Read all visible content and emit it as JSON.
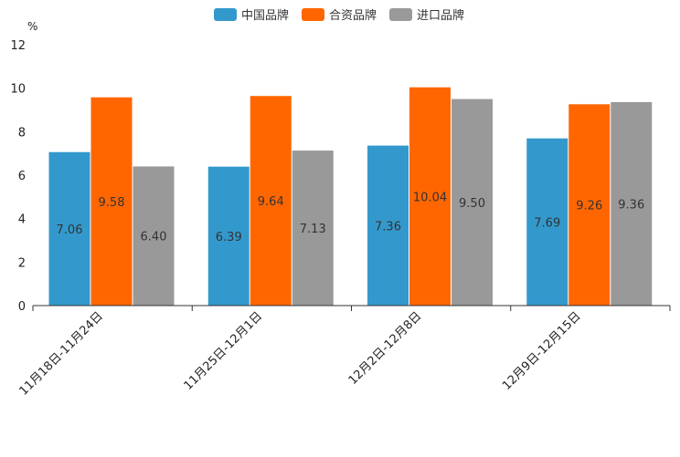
{
  "chart_data": {
    "type": "bar",
    "unit": "%",
    "categories": [
      "11月18日-11月24日",
      "11月25日-12月1日",
      "12月2日-12月8日",
      "12月9日-12月15日"
    ],
    "series": [
      {
        "name": "中国品牌",
        "color": "#3399cc",
        "values": [
          7.06,
          6.39,
          7.36,
          7.69
        ],
        "labels": [
          "7.06",
          "6.39",
          "7.36",
          "7.69"
        ]
      },
      {
        "name": "合资品牌",
        "color": "#ff6600",
        "values": [
          9.58,
          9.64,
          10.04,
          9.26
        ],
        "labels": [
          "9.58",
          "9.64",
          "10.04",
          "9.26"
        ]
      },
      {
        "name": "进口品牌",
        "color": "#999999",
        "values": [
          6.4,
          7.13,
          9.5,
          9.36
        ],
        "labels": [
          "6.40",
          "7.13",
          "9.50",
          "9.36"
        ]
      }
    ],
    "ylim": [
      0,
      12
    ],
    "yticks": [
      "0",
      "2",
      "4",
      "6",
      "8",
      "10",
      "12"
    ],
    "legend_position": "top-center"
  }
}
